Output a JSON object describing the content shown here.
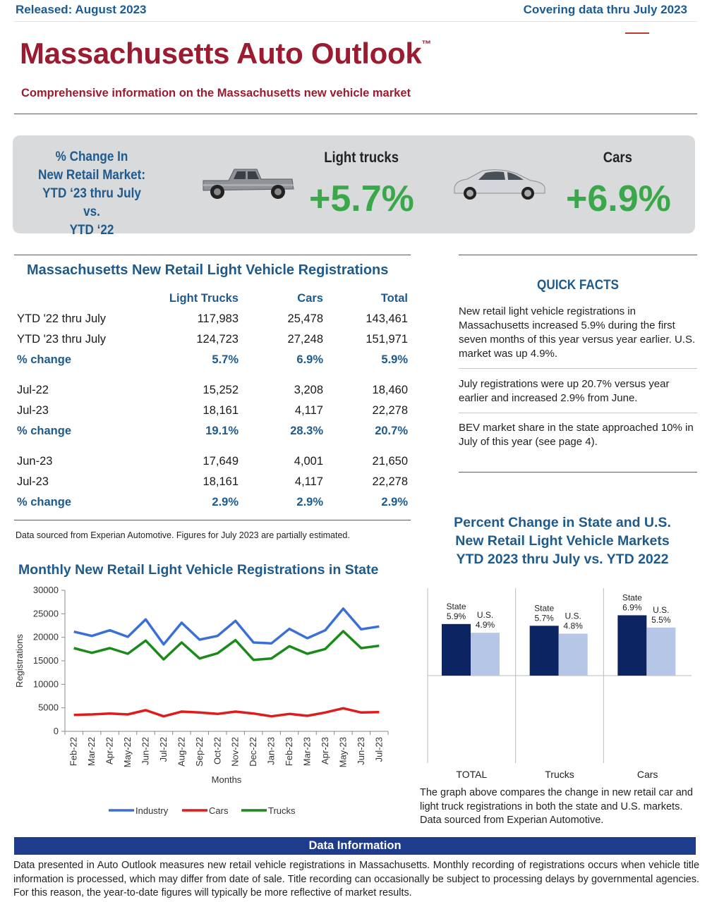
{
  "header": {
    "released": "Released: August 2023",
    "covering": "Covering data thru July 2023"
  },
  "title": {
    "main": "Massachusetts Auto Outlook",
    "tm": "™"
  },
  "subtitle": "Comprehensive information on the Massachusetts new vehicle market",
  "banner": {
    "label_lines": [
      "% Change In",
      "New Retail Market:",
      "YTD ‘23 thru July vs.",
      "YTD ‘22"
    ],
    "light_trucks_label": "Light trucks",
    "light_trucks_pct": "+5.7%",
    "cars_label": "Cars",
    "cars_pct": "+6.9%"
  },
  "registrations": {
    "title": "Massachusetts New Retail Light Vehicle Registrations",
    "columns": [
      "",
      "Light Trucks",
      "Cars",
      "Total"
    ],
    "groups": [
      [
        {
          "label": "YTD '22 thru July",
          "trucks": "117,983",
          "cars": "25,478",
          "total": "143,461",
          "pct": false
        },
        {
          "label": "YTD '23 thru July",
          "trucks": "124,723",
          "cars": "27,248",
          "total": "151,971",
          "pct": false
        },
        {
          "label": "% change",
          "trucks": "5.7%",
          "cars": "6.9%",
          "total": "5.9%",
          "pct": true
        }
      ],
      [
        {
          "label": "Jul-22",
          "trucks": "15,252",
          "cars": "3,208",
          "total": "18,460",
          "pct": false
        },
        {
          "label": "Jul-23",
          "trucks": "18,161",
          "cars": "4,117",
          "total": "22,278",
          "pct": false
        },
        {
          "label": "% change",
          "trucks": "19.1%",
          "cars": "28.3%",
          "total": "20.7%",
          "pct": true
        }
      ],
      [
        {
          "label": "Jun-23",
          "trucks": "17,649",
          "cars": "4,001",
          "total": "21,650",
          "pct": false
        },
        {
          "label": "Jul-23",
          "trucks": "18,161",
          "cars": "4,117",
          "total": "22,278",
          "pct": false
        },
        {
          "label": "% change",
          "trucks": "2.9%",
          "cars": "2.9%",
          "total": "2.9%",
          "pct": true
        }
      ]
    ],
    "note": "Data sourced from Experian Automotive. Figures for July 2023 are partially estimated."
  },
  "quick_facts": {
    "title": "QUICK FACTS",
    "items": [
      "New retail light vehicle registrations in Massachusetts increased 5.9% during the first seven months of this year versus year earlier. U.S. market was up 4.9%.",
      "July registrations were up 20.7% versus year earlier and increased 2.9% from June.",
      "BEV market share in the state approached 10% in July of this year (see page 4)."
    ]
  },
  "percent_change": {
    "title_lines": [
      "Percent Change in State and U.S.",
      "New Retail Light Vehicle Markets",
      "YTD 2023 thru July vs. YTD 2022"
    ],
    "caption": "The graph above compares the change in new retail car and light truck registrations in both the state and U.S. markets. Data sourced from Experian Automotive."
  },
  "monthly_chart_title": "Monthly New Retail Light Vehicle Registrations in State",
  "data_info": {
    "heading": "Data Information",
    "text": "Data presented in Auto Outlook measures new retail vehicle registrations in Massachusetts. Monthly recording of registrations occurs when vehicle title information is processed, which may differ from date of sale. Title recording can occasionally be subject to processing delays by governmental agencies. For this reason, the year-to-date figures will typically be more reflective of market results."
  },
  "colors": {
    "industry": "#3b6fd8",
    "cars": "#e01b1b",
    "trucks": "#1a8a1a",
    "state_bar": "#0c2461",
    "us_bar": "#b6c6e6"
  },
  "chart_data": [
    {
      "type": "line",
      "title": "Monthly New Retail Light Vehicle Registrations in State",
      "xlabel": "Months",
      "ylabel": "Registrations",
      "ylim": [
        0,
        30000
      ],
      "yticks": [
        0,
        5000,
        10000,
        15000,
        20000,
        25000,
        30000
      ],
      "ytick_labels": [
        "0",
        "5000",
        "10000",
        "15000",
        "20000",
        "25000",
        "30000"
      ],
      "categories": [
        "Feb-22",
        "Mar-22",
        "Apr-22",
        "May-22",
        "Jun-22",
        "Jul-22",
        "Aug-22",
        "Sep-22",
        "Oct-22",
        "Nov-22",
        "Dec-22",
        "Jan-23",
        "Feb-23",
        "Mar-23",
        "Apr-23",
        "May-23",
        "Jun-23",
        "Jul-23"
      ],
      "legend_position": "bottom",
      "series": [
        {
          "name": "Industry",
          "color": "#3b6fd8",
          "values": [
            21200,
            20300,
            21500,
            20100,
            23800,
            18500,
            23100,
            19500,
            20300,
            23500,
            18900,
            18700,
            21800,
            19800,
            21500,
            26100,
            21700,
            22300
          ]
        },
        {
          "name": "Cars",
          "color": "#e01b1b",
          "values": [
            3500,
            3600,
            3800,
            3600,
            4500,
            3200,
            4200,
            4000,
            3700,
            4200,
            3800,
            3200,
            3700,
            3300,
            4000,
            4900,
            4000,
            4100
          ]
        },
        {
          "name": "Trucks",
          "color": "#1a8a1a",
          "values": [
            17700,
            16700,
            17700,
            16500,
            19300,
            15300,
            18900,
            15500,
            16600,
            19400,
            15200,
            15500,
            18100,
            16500,
            17500,
            21300,
            17700,
            18200
          ]
        }
      ]
    },
    {
      "type": "bar",
      "title": "Percent Change in State and U.S. New Retail Light Vehicle Markets YTD 2023 thru July vs. YTD 2022",
      "categories": [
        "TOTAL",
        "Trucks",
        "Cars"
      ],
      "ylim": [
        -10,
        10
      ],
      "series": [
        {
          "name": "State",
          "values": [
            5.9,
            5.7,
            6.9
          ],
          "labels": [
            "5.9%",
            "5.7%",
            "6.9%"
          ]
        },
        {
          "name": "U.S.",
          "values": [
            4.9,
            4.8,
            5.5
          ],
          "labels": [
            "4.9%",
            "4.8%",
            "5.5%"
          ]
        }
      ]
    }
  ]
}
